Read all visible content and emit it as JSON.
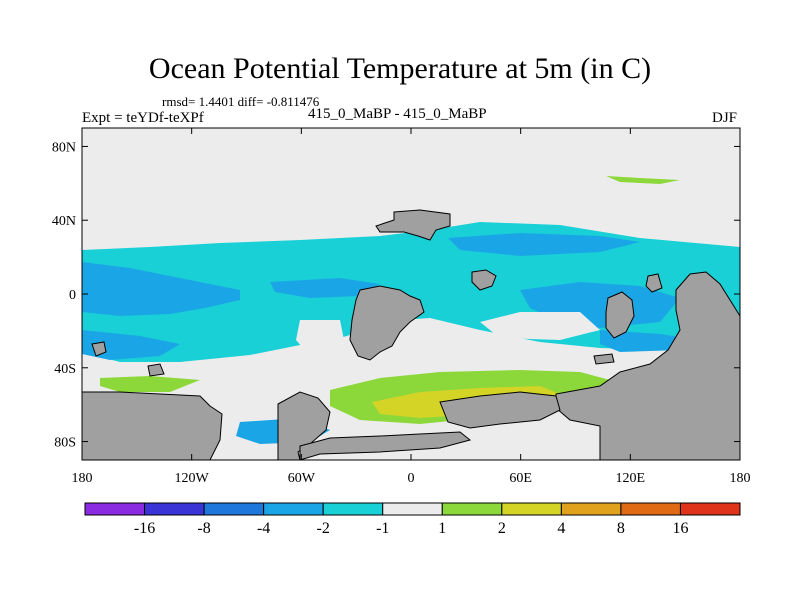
{
  "chart_data": {
    "type": "heatmap",
    "title": "Ocean Potential Temperature at 5m (in C)",
    "stats": "rmsd= 1.4401 diff= -0.811476",
    "left_label": "Expt = teYDf-teXPf",
    "center_label": "415_0_MaBP - 415_0_MaBP",
    "right_label": "DJF",
    "x_ticks": [
      "180",
      "120W",
      "60W",
      "0",
      "60E",
      "120E",
      "180"
    ],
    "y_ticks": [
      "80N",
      "40N",
      "0",
      "40S",
      "80S"
    ],
    "xlim": [
      -180,
      180
    ],
    "ylim": [
      -90,
      90
    ],
    "land_color": "#a0a0a0",
    "colorbar": {
      "colors": [
        "#8a2be2",
        "#3a33d6",
        "#1e78dc",
        "#1aa6e6",
        "#19d0d6",
        "#ececec",
        "#8cd83a",
        "#d4d426",
        "#e0a21c",
        "#e06a14",
        "#e0341a"
      ],
      "labels": [
        "-16",
        "-8",
        "-4",
        "-2",
        "-1",
        "1",
        "2",
        "4",
        "8",
        "16"
      ]
    }
  }
}
